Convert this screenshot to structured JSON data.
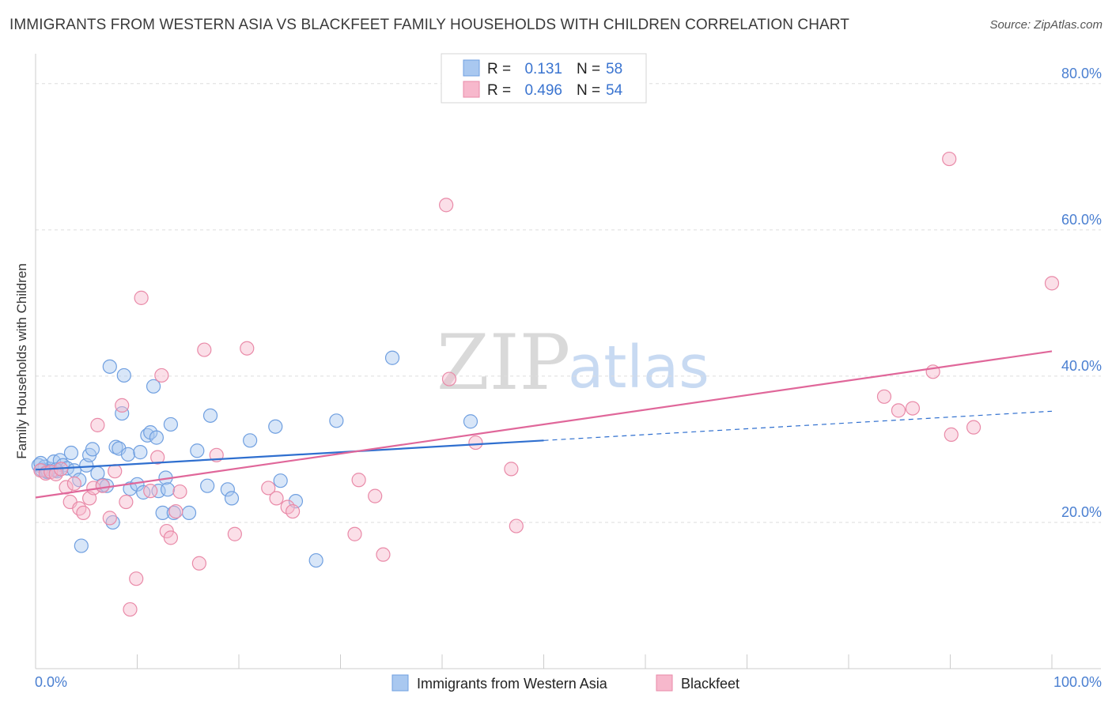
{
  "title": "IMMIGRANTS FROM WESTERN ASIA VS BLACKFEET FAMILY HOUSEHOLDS WITH CHILDREN CORRELATION CHART",
  "source": "Source: ZipAtlas.com",
  "watermark": {
    "zip": "ZIP",
    "atlas": "atlas"
  },
  "colors": {
    "blue_fill": "#a9c8f0",
    "blue_stroke": "#6f9fe0",
    "blue_line": "#2f6fcf",
    "pink_fill": "#f7b8cc",
    "pink_stroke": "#e98aa8",
    "pink_line": "#e0679a",
    "tick_text": "#4a7fd1",
    "grid": "#dddddd"
  },
  "legend": {
    "r_label": "R =",
    "n_label": "N =",
    "series": [
      {
        "r": "0.131",
        "n": "58"
      },
      {
        "r": "0.496",
        "n": "54"
      }
    ]
  },
  "chart_data": {
    "type": "scatter",
    "xlabel": "",
    "ylabel": "Family Households with Children",
    "xlim": [
      0,
      100
    ],
    "ylim": [
      0,
      83
    ],
    "x_tick_labels": [
      "0.0%",
      "100.0%"
    ],
    "y_ticks": [
      20,
      40,
      60,
      80
    ],
    "y_tick_labels": [
      "20.0%",
      "40.0%",
      "60.0%",
      "80.0%"
    ],
    "grid": true,
    "series": [
      {
        "name": "Immigrants from Western Asia",
        "color": "blue",
        "trend": {
          "x0": 0,
          "y0": 27.2,
          "x1": 50,
          "y1": 31.2,
          "dash_to_x": 100,
          "dash_to_y": 35.2
        },
        "points": [
          [
            0.3,
            27.8
          ],
          [
            0.6,
            27.2
          ],
          [
            0.9,
            27.6
          ],
          [
            1.1,
            26.9
          ],
          [
            1.4,
            27.3
          ],
          [
            1.8,
            28.3
          ],
          [
            2.1,
            27.0
          ],
          [
            2.4,
            28.5
          ],
          [
            2.7,
            27.8
          ],
          [
            3.1,
            27.4
          ],
          [
            3.5,
            29.5
          ],
          [
            3.8,
            27.1
          ],
          [
            4.3,
            25.8
          ],
          [
            4.5,
            16.8
          ],
          [
            5.0,
            27.8
          ],
          [
            5.3,
            29.2
          ],
          [
            5.6,
            30.0
          ],
          [
            6.1,
            26.7
          ],
          [
            6.6,
            25.1
          ],
          [
            7.0,
            25.0
          ],
          [
            7.3,
            41.3
          ],
          [
            7.6,
            20.0
          ],
          [
            7.9,
            30.3
          ],
          [
            8.2,
            30.1
          ],
          [
            8.5,
            34.9
          ],
          [
            8.7,
            40.1
          ],
          [
            9.1,
            29.3
          ],
          [
            9.3,
            24.6
          ],
          [
            10.0,
            25.2
          ],
          [
            10.3,
            29.6
          ],
          [
            10.6,
            24.1
          ],
          [
            11.0,
            31.9
          ],
          [
            11.3,
            32.3
          ],
          [
            11.6,
            38.6
          ],
          [
            11.9,
            31.6
          ],
          [
            12.1,
            24.3
          ],
          [
            12.5,
            21.3
          ],
          [
            12.8,
            26.1
          ],
          [
            13.0,
            24.5
          ],
          [
            13.3,
            33.4
          ],
          [
            13.6,
            21.3
          ],
          [
            15.1,
            21.3
          ],
          [
            15.9,
            29.8
          ],
          [
            17.2,
            34.6
          ],
          [
            16.9,
            25.0
          ],
          [
            18.9,
            24.5
          ],
          [
            19.3,
            23.3
          ],
          [
            21.1,
            31.2
          ],
          [
            23.6,
            33.1
          ],
          [
            24.1,
            25.7
          ],
          [
            25.6,
            22.9
          ],
          [
            27.6,
            14.8
          ],
          [
            29.6,
            33.9
          ],
          [
            35.1,
            42.5
          ],
          [
            42.8,
            33.8
          ],
          [
            1.2,
            27.0
          ],
          [
            2.0,
            27.2
          ],
          [
            0.5,
            28.1
          ]
        ]
      },
      {
        "name": "Blackfeet",
        "color": "pink",
        "trend": {
          "x0": 0,
          "y0": 23.4,
          "x1": 100,
          "y1": 43.4
        },
        "points": [
          [
            0.5,
            27.1
          ],
          [
            1.0,
            26.7
          ],
          [
            1.5,
            26.9
          ],
          [
            2.0,
            26.6
          ],
          [
            2.5,
            27.3
          ],
          [
            3.0,
            24.8
          ],
          [
            3.4,
            22.8
          ],
          [
            3.8,
            25.3
          ],
          [
            4.3,
            21.9
          ],
          [
            4.7,
            21.3
          ],
          [
            5.3,
            23.3
          ],
          [
            5.7,
            24.7
          ],
          [
            6.1,
            33.3
          ],
          [
            6.6,
            25.0
          ],
          [
            7.3,
            20.6
          ],
          [
            7.8,
            27.0
          ],
          [
            8.5,
            36.0
          ],
          [
            8.9,
            22.8
          ],
          [
            9.3,
            8.1
          ],
          [
            9.9,
            12.3
          ],
          [
            10.4,
            50.7
          ],
          [
            11.3,
            24.3
          ],
          [
            12.0,
            28.9
          ],
          [
            12.4,
            40.1
          ],
          [
            12.9,
            18.8
          ],
          [
            13.3,
            17.9
          ],
          [
            13.8,
            21.5
          ],
          [
            14.2,
            24.2
          ],
          [
            16.1,
            14.4
          ],
          [
            16.6,
            43.6
          ],
          [
            17.8,
            29.2
          ],
          [
            19.6,
            18.4
          ],
          [
            20.8,
            43.8
          ],
          [
            22.9,
            24.7
          ],
          [
            23.7,
            23.3
          ],
          [
            24.8,
            22.1
          ],
          [
            25.3,
            21.5
          ],
          [
            31.4,
            18.4
          ],
          [
            31.8,
            25.8
          ],
          [
            33.4,
            23.6
          ],
          [
            34.2,
            15.6
          ],
          [
            40.4,
            63.4
          ],
          [
            40.7,
            39.6
          ],
          [
            43.3,
            30.9
          ],
          [
            46.8,
            27.3
          ],
          [
            47.3,
            19.5
          ],
          [
            83.5,
            37.2
          ],
          [
            84.9,
            35.3
          ],
          [
            86.3,
            35.6
          ],
          [
            88.3,
            40.6
          ],
          [
            89.9,
            69.7
          ],
          [
            90.1,
            32.0
          ],
          [
            92.3,
            33.0
          ],
          [
            100.0,
            52.7
          ]
        ]
      }
    ]
  }
}
